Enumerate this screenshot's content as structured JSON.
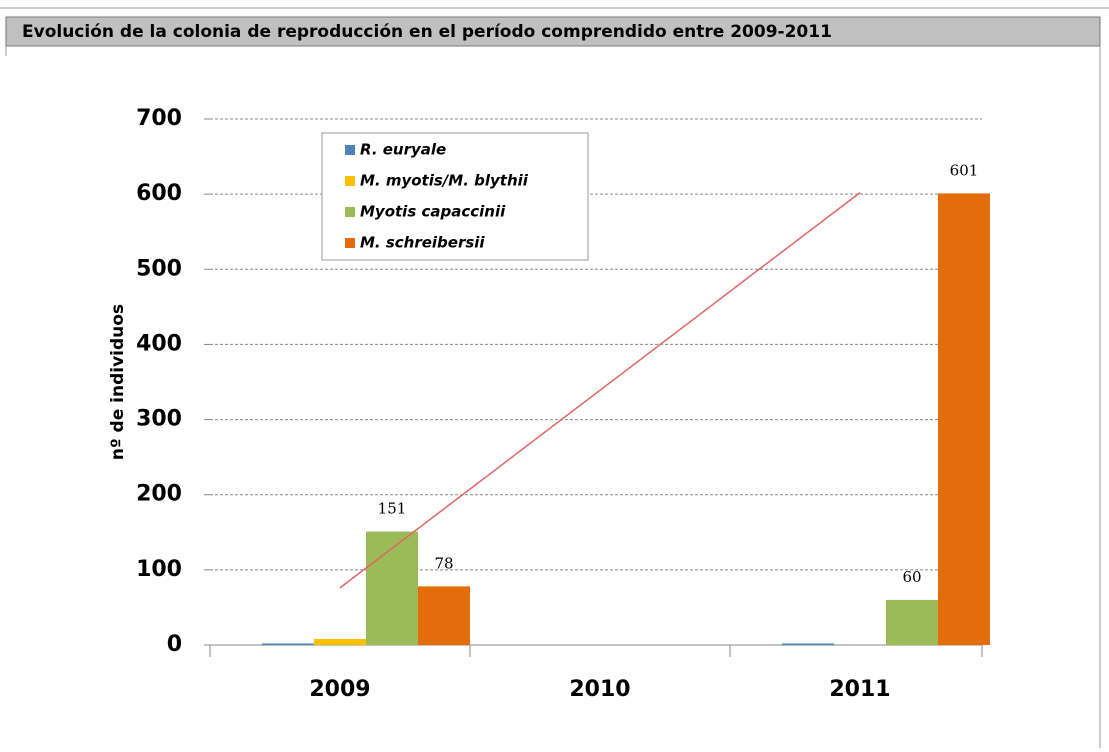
{
  "header": {
    "title": "Evolución de la colonia de reproducción en el período comprendido entre 2009-2011"
  },
  "chart_data": {
    "type": "bar",
    "y_label": "nº de individuos",
    "categories": [
      "2009",
      "2010",
      "2011"
    ],
    "series": [
      {
        "name": "R. euryale",
        "color": "#4f81bd",
        "values": [
          2,
          null,
          2
        ],
        "data_labels": false
      },
      {
        "name": "M. myotis/M. blythii",
        "color": "#ffc000",
        "values": [
          8,
          null,
          null
        ],
        "data_labels": false
      },
      {
        "name": "Myotis capaccinii",
        "color": "#9bbb59",
        "values": [
          151,
          null,
          60
        ],
        "data_labels": true
      },
      {
        "name": "M. schreibersii",
        "color": "#e46c0a",
        "values": [
          78,
          null,
          601
        ],
        "data_labels": true
      }
    ],
    "trendline": {
      "color": "#e06666",
      "values": [
        76,
        602
      ]
    },
    "ylim": [
      0,
      700
    ],
    "yticks": [
      0,
      100,
      200,
      300,
      400,
      500,
      600,
      700
    ],
    "grid": true,
    "legend": "upper-left"
  }
}
